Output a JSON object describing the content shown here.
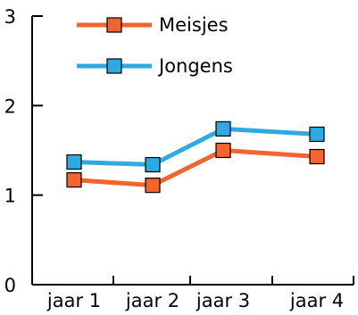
{
  "chart_data": {
    "type": "line",
    "title": "",
    "xlabel": "",
    "ylabel": "",
    "categories": [
      "jaar 1",
      "jaar 2",
      "jaar 3",
      "jaar 4"
    ],
    "ylim": [
      0,
      3
    ],
    "yticks": [
      0,
      1,
      2,
      3
    ],
    "grid": false,
    "legend_position": "top-left",
    "series": [
      {
        "name": "Meisjes",
        "color": "#F26430",
        "values": [
          1.17,
          1.11,
          1.5,
          1.43
        ]
      },
      {
        "name": "Jongens",
        "color": "#2CAAE1",
        "values": [
          1.37,
          1.34,
          1.74,
          1.68
        ]
      }
    ]
  }
}
